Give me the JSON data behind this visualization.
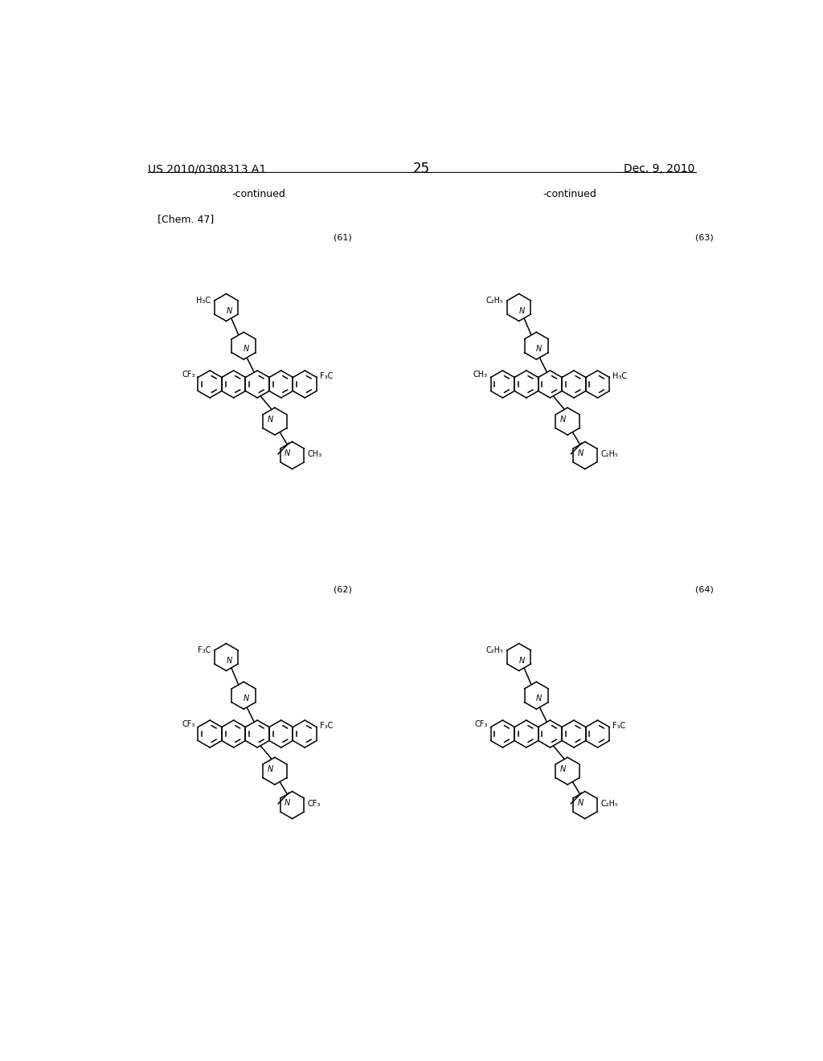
{
  "page_header_left": "US 2010/0308313 A1",
  "page_header_right": "Dec. 9, 2010",
  "page_number": "25",
  "continued_left": "-continued",
  "continued_right": "-continued",
  "chem_label": "[Chem. 47]",
  "compound_numbers": [
    "(61)",
    "(62)",
    "(63)",
    "(64)"
  ],
  "background_color": "#ffffff",
  "text_color": "#000000",
  "line_color": "#000000",
  "font_size_header": 10,
  "font_size_body": 9,
  "font_size_label": 9,
  "font_size_number": 8
}
